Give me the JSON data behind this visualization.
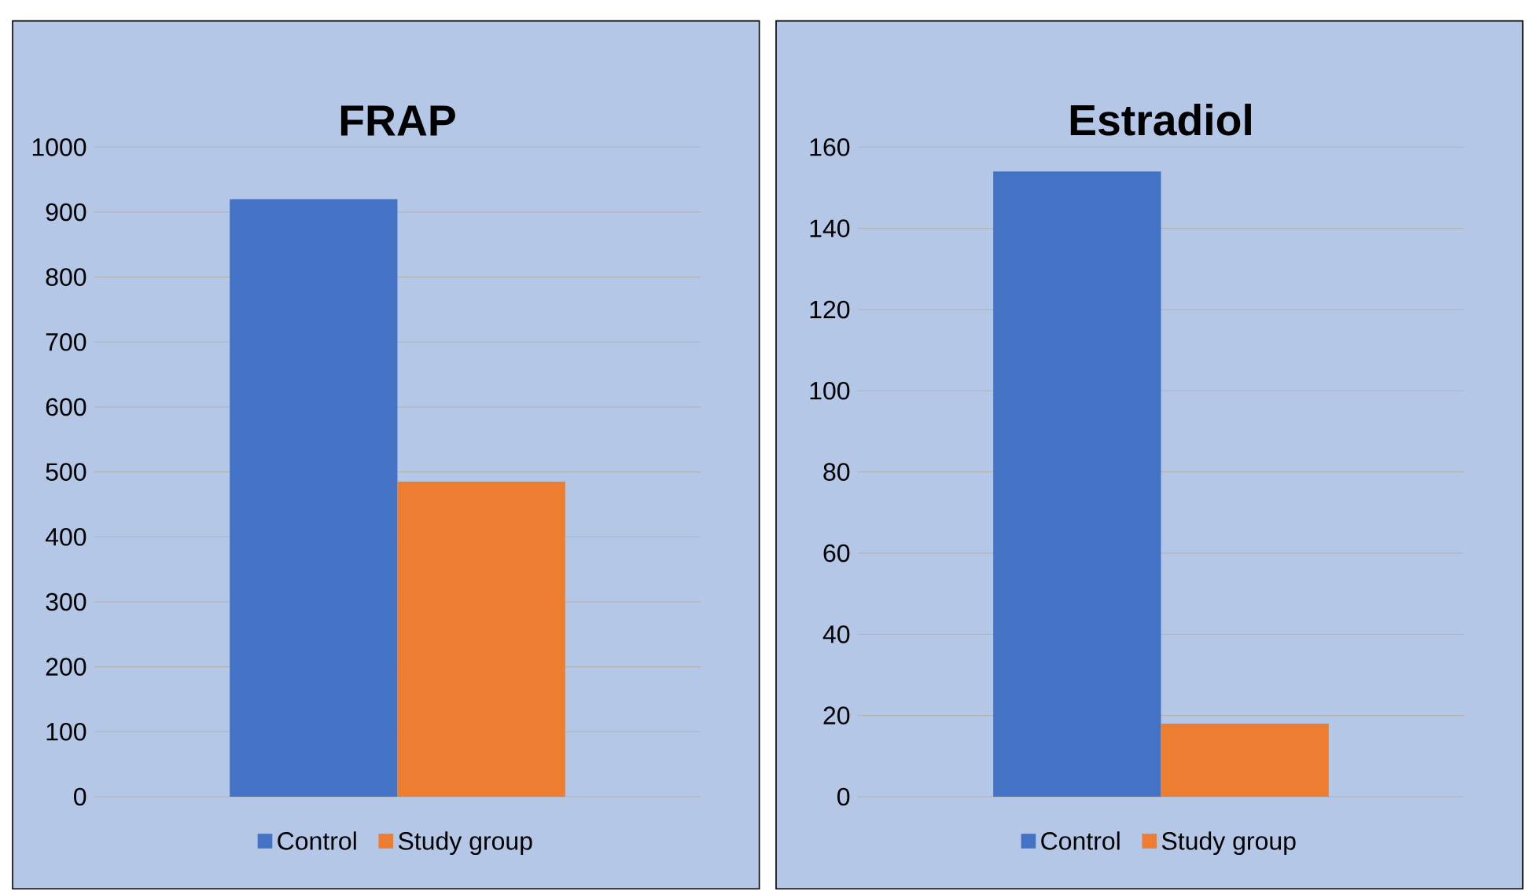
{
  "chart_data": [
    {
      "type": "bar",
      "title": "FRAP",
      "categories": [
        null
      ],
      "series": [
        {
          "name": "Control",
          "color": "#4472c4",
          "values": [
            920
          ]
        },
        {
          "name": "Study group",
          "color": "#ed7d31",
          "values": [
            485
          ]
        }
      ],
      "ylim": [
        0,
        1000
      ],
      "yticks": [
        0,
        100,
        200,
        300,
        400,
        500,
        600,
        700,
        800,
        900,
        1000
      ],
      "grid": "y",
      "legend": "bottom"
    },
    {
      "type": "bar",
      "title": "Estradiol",
      "categories": [
        null
      ],
      "series": [
        {
          "name": "Control",
          "color": "#4472c4",
          "values": [
            154
          ]
        },
        {
          "name": "Study group",
          "color": "#ed7d31",
          "values": [
            18
          ]
        }
      ],
      "ylim": [
        0,
        160
      ],
      "yticks": [
        0,
        20,
        40,
        60,
        80,
        100,
        120,
        140,
        160
      ],
      "grid": "y",
      "legend": "bottom"
    }
  ]
}
